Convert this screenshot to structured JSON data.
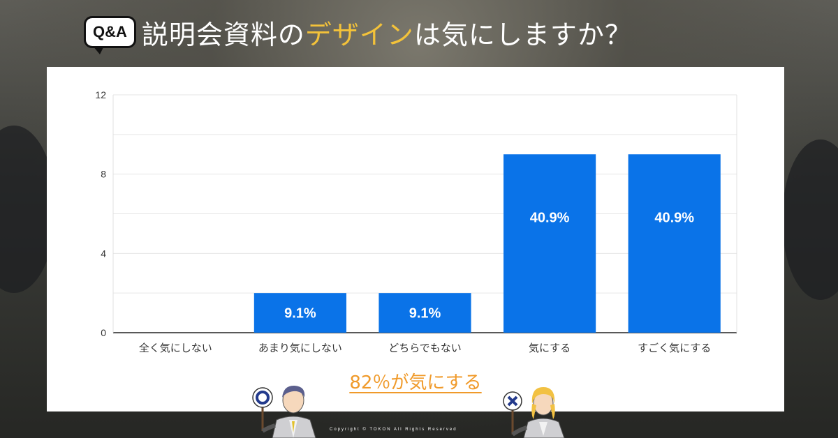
{
  "header": {
    "badge": "Q&A",
    "title_pre": "説明会資料の",
    "title_highlight": "デザイン",
    "title_post": "は気にしますか？"
  },
  "chart_data": {
    "type": "bar",
    "categories": [
      "全く気にしない",
      "あまり気にしない",
      "どちらでもない",
      "気にする",
      "すごく気にする"
    ],
    "values": [
      0,
      2,
      2,
      9,
      9
    ],
    "data_labels": [
      "",
      "9.1%",
      "9.1%",
      "40.9%",
      "40.9%"
    ],
    "y_ticks": [
      "0",
      "4",
      "8",
      "12"
    ],
    "ylim": [
      0,
      12
    ],
    "grid": true,
    "bar_color": "#0a73e8"
  },
  "note": "82％が気にする",
  "copyright": "Copyright © TOKON All Rights Reserved",
  "colors": {
    "highlight": "#f3c23a",
    "note": "#f09a2a"
  }
}
